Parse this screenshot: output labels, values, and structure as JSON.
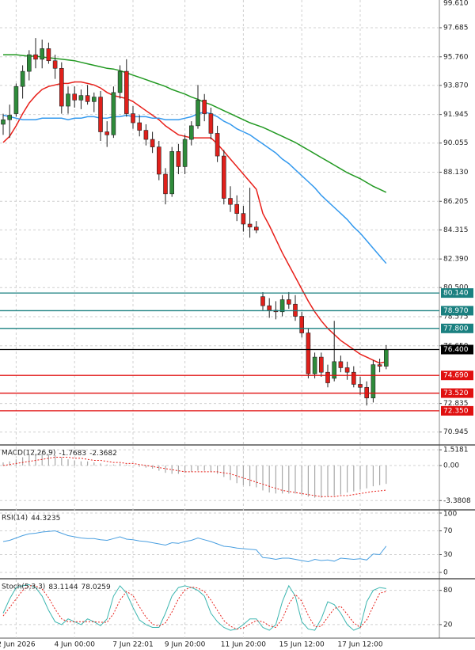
{
  "chart_data": [
    {
      "type": "candlestick",
      "categories": [
        null,
        null,
        "2 Jun 2026",
        null,
        null,
        null,
        null,
        null,
        null,
        null,
        null,
        "4 Jun 00:00",
        null,
        null,
        null,
        null,
        null,
        null,
        null,
        null,
        "7 Jun 22:01",
        null,
        null,
        null,
        null,
        null,
        null,
        null,
        "9 Jun 20:00",
        null,
        null,
        null,
        null,
        null,
        null,
        null,
        null,
        "11 Jun 20:00",
        null,
        null,
        null,
        null,
        null,
        null,
        null,
        null,
        "15 Jun 12:00",
        null,
        null,
        null,
        null,
        null,
        null,
        null,
        null,
        "17 Jun 12:00",
        null,
        null,
        null,
        null
      ],
      "open": [
        91.3,
        91.6,
        92.0,
        93.8,
        94.8,
        95.9,
        95.6,
        96.3,
        95.5,
        95.0,
        92.5,
        93.3,
        92.9,
        93.2,
        92.8,
        93.1,
        90.8,
        90.6,
        93.4,
        94.8,
        92.0,
        91.4,
        90.9,
        90.3,
        89.8,
        88.0,
        86.7,
        89.5,
        88.5,
        90.3,
        91.2,
        92.9,
        92.0,
        90.7,
        89.2,
        86.4,
        86.0,
        85.4,
        84.7,
        84.5,
        79.9,
        79.3,
        79.0,
        78.9,
        79.7,
        79.4,
        78.6,
        77.5,
        74.8,
        75.9,
        74.9,
        74.5,
        75.6,
        75.2,
        74.9,
        74.1,
        73.9,
        73.2,
        75.4,
        75.3
      ],
      "high": [
        92.0,
        92.6,
        94.0,
        95.2,
        96.2,
        97.0,
        96.9,
        96.7,
        95.9,
        95.4,
        93.8,
        93.8,
        93.6,
        93.9,
        93.4,
        93.5,
        91.5,
        93.8,
        95.2,
        95.6,
        92.5,
        91.9,
        91.3,
        90.8,
        90.2,
        88.4,
        89.8,
        90.0,
        90.6,
        91.5,
        93.9,
        93.3,
        92.4,
        91.2,
        89.6,
        87.2,
        86.6,
        85.9,
        87.1,
        84.9,
        80.2,
        79.8,
        79.6,
        80.0,
        80.2,
        80.0,
        78.9,
        77.8,
        76.2,
        76.2,
        75.4,
        78.3,
        76.0,
        75.6,
        75.3,
        74.6,
        74.3,
        75.7,
        75.8,
        76.7
      ],
      "low": [
        90.6,
        90.4,
        91.8,
        93.0,
        94.2,
        95.0,
        95.0,
        95.3,
        94.3,
        92.0,
        92.0,
        92.4,
        92.3,
        92.6,
        92.1,
        90.2,
        89.8,
        90.4,
        93.0,
        91.8,
        91.0,
        90.5,
        89.9,
        89.4,
        87.6,
        86.0,
        86.5,
        88.0,
        88.0,
        89.9,
        91.0,
        91.5,
        90.3,
        88.8,
        86.0,
        85.5,
        84.9,
        84.2,
        83.8,
        84.1,
        79.0,
        78.5,
        78.4,
        78.6,
        79.1,
        78.3,
        77.2,
        74.5,
        74.5,
        74.6,
        73.9,
        74.3,
        74.9,
        74.4,
        73.9,
        73.4,
        72.7,
        72.9,
        74.9,
        75.1
      ],
      "close": [
        91.6,
        91.9,
        93.8,
        94.8,
        95.9,
        95.6,
        96.3,
        95.5,
        95.0,
        92.5,
        93.3,
        92.9,
        93.2,
        92.8,
        93.1,
        90.8,
        90.6,
        93.4,
        94.8,
        92.0,
        91.4,
        90.9,
        90.3,
        89.8,
        88.0,
        86.7,
        89.5,
        88.5,
        90.3,
        91.2,
        92.9,
        92.0,
        90.7,
        89.2,
        86.4,
        86.0,
        85.4,
        84.7,
        84.5,
        84.3,
        79.3,
        79.0,
        78.9,
        79.7,
        79.4,
        78.6,
        77.5,
        74.8,
        75.9,
        74.9,
        74.2,
        75.6,
        75.2,
        74.9,
        74.1,
        73.9,
        73.2,
        75.4,
        75.3,
        76.4
      ],
      "up_color": "#2e8b3a",
      "down_color": "#e0201b",
      "lines": [
        {
          "color": "#e8201a",
          "values": [
            90.1,
            90.5,
            91.2,
            92.0,
            92.7,
            93.2,
            93.6,
            93.8,
            93.9,
            94.0,
            94.0,
            94.1,
            94.1,
            94.0,
            93.9,
            93.7,
            93.4,
            93.2,
            93.1,
            93.0,
            92.8,
            92.5,
            92.2,
            91.9,
            91.6,
            91.2,
            90.9,
            90.6,
            90.5,
            90.4,
            90.4,
            90.4,
            90.4,
            90.0,
            89.5,
            89.0,
            88.5,
            88.0,
            87.5,
            87.0,
            85.4,
            84.6,
            83.7,
            82.8,
            82.0,
            81.2,
            80.4,
            79.6,
            78.9,
            78.3,
            77.8,
            77.4,
            77.0,
            76.7,
            76.4,
            76.1,
            75.9,
            75.7,
            75.5,
            75.6
          ]
        },
        {
          "color": "#3399ee",
          "values": [
            91.9,
            91.8,
            91.7,
            91.6,
            91.6,
            91.6,
            91.7,
            91.7,
            91.7,
            91.7,
            91.6,
            91.7,
            91.7,
            91.8,
            91.8,
            91.7,
            91.7,
            91.8,
            91.8,
            91.9,
            91.8,
            91.8,
            91.8,
            91.7,
            91.7,
            91.6,
            91.6,
            91.6,
            91.7,
            91.8,
            92.0,
            92.1,
            92.0,
            91.8,
            91.5,
            91.3,
            91.0,
            90.8,
            90.6,
            90.3,
            90.0,
            89.7,
            89.4,
            89.0,
            88.7,
            88.3,
            87.9,
            87.5,
            87.1,
            86.6,
            86.2,
            85.8,
            85.4,
            85.0,
            84.5,
            84.1,
            83.6,
            83.1,
            82.6,
            82.1
          ]
        },
        {
          "color": "#229922",
          "values": [
            95.9,
            95.9,
            95.9,
            95.85,
            95.8,
            95.8,
            95.75,
            95.7,
            95.65,
            95.6,
            95.55,
            95.5,
            95.4,
            95.3,
            95.2,
            95.1,
            95.0,
            94.95,
            94.85,
            94.7,
            94.55,
            94.4,
            94.25,
            94.1,
            93.95,
            93.8,
            93.6,
            93.45,
            93.3,
            93.1,
            92.95,
            92.75,
            92.6,
            92.4,
            92.2,
            92.0,
            91.8,
            91.6,
            91.4,
            91.25,
            91.1,
            90.9,
            90.7,
            90.5,
            90.3,
            90.1,
            89.85,
            89.6,
            89.35,
            89.1,
            88.85,
            88.6,
            88.35,
            88.1,
            87.9,
            87.7,
            87.45,
            87.2,
            87.0,
            86.8
          ]
        }
      ],
      "levels": [
        {
          "value": 80.14,
          "label": "80.140",
          "color": "#1a8080"
        },
        {
          "value": 78.97,
          "label": "78.970",
          "color": "#1a8080"
        },
        {
          "value": 77.8,
          "label": "77.800",
          "color": "#1a8080"
        },
        {
          "value": 74.69,
          "label": "74.690",
          "color": "#e01010"
        },
        {
          "value": 73.52,
          "label": "73.520",
          "color": "#e01010"
        },
        {
          "value": 72.35,
          "label": "72.350",
          "color": "#e01010"
        }
      ],
      "last": {
        "value": 76.4,
        "label": "76.400",
        "color": "#000000"
      },
      "ylim": [
        70.145,
        99.518
      ],
      "yticks": [
        {
          "value": 99.61,
          "label": "99.610"
        },
        97.685,
        {
          "value": 95.76,
          "label": "95.760"
        },
        {
          "value": 93.87,
          "label": "93.870"
        },
        91.945,
        90.055,
        {
          "value": 88.13,
          "label": "88.130"
        },
        86.205,
        84.315,
        {
          "value": 82.39,
          "label": "82.390"
        },
        {
          "value": 80.5,
          "label": "80.500"
        },
        78.575,
        {
          "value": 76.65,
          "label": "76.650"
        },
        72.835,
        70.945
      ],
      "grid": true
    },
    {
      "type": "indicator",
      "title": "MACD(12,26,9)",
      "series": [
        {
          "style": "histogram",
          "color": "#a8a8a8",
          "values": [
            0.3,
            0.4,
            0.6,
            0.8,
            1.0,
            1.1,
            1.2,
            1.1,
            1.0,
            0.8,
            0.6,
            0.5,
            0.4,
            0.4,
            0.3,
            0.2,
            0.1,
            0.1,
            0.2,
            0.1,
            0.0,
            -0.1,
            -0.2,
            -0.3,
            -0.5,
            -0.7,
            -0.8,
            -0.8,
            -0.7,
            -0.6,
            -0.5,
            -0.5,
            -0.6,
            -0.8,
            -1.1,
            -1.4,
            -1.7,
            -1.9,
            -2.0,
            -2.1,
            -2.4,
            -2.6,
            -2.7,
            -2.7,
            -2.7,
            -2.7,
            -2.8,
            -3.0,
            -3.1,
            -3.1,
            -3.0,
            -2.9,
            -2.8,
            -2.6,
            -2.5,
            -2.3,
            -2.2,
            -2.0,
            -1.9,
            -1.7683
          ]
        },
        {
          "style": "dotted",
          "color": "#e8201a",
          "values": [
            0.0,
            0.1,
            0.2,
            0.3,
            0.4,
            0.5,
            0.6,
            0.7,
            0.8,
            0.8,
            0.8,
            0.7,
            0.7,
            0.6,
            0.5,
            0.5,
            0.4,
            0.3,
            0.3,
            0.2,
            0.2,
            0.1,
            0.0,
            -0.1,
            -0.2,
            -0.3,
            -0.4,
            -0.5,
            -0.6,
            -0.6,
            -0.6,
            -0.6,
            -0.6,
            -0.6,
            -0.7,
            -0.8,
            -1.0,
            -1.2,
            -1.4,
            -1.6,
            -1.8,
            -2.0,
            -2.2,
            -2.4,
            -2.5,
            -2.6,
            -2.7,
            -2.8,
            -2.9,
            -3.0,
            -3.0,
            -3.0,
            -2.9,
            -2.9,
            -2.8,
            -2.7,
            -2.6,
            -2.5,
            -2.45,
            -2.3682
          ]
        }
      ],
      "ylim": [
        -4.2,
        1.91
      ],
      "yticks": [
        1.5181,
        {
          "value": 0,
          "label": "0.00"
        },
        -3.3808
      ],
      "grid": true
    },
    {
      "type": "indicator",
      "title": "RSI(14)",
      "series": [
        {
          "style": "solid",
          "color": "#4a9fe0",
          "values": [
            52,
            54,
            58,
            62,
            65,
            66,
            68,
            69,
            70,
            66,
            62,
            60,
            58,
            57,
            57,
            55,
            54,
            57,
            60,
            56,
            55,
            53,
            52,
            50,
            48,
            46,
            50,
            49,
            52,
            54,
            58,
            55,
            52,
            48,
            44,
            43,
            41,
            40,
            39,
            38,
            25,
            24,
            22,
            24,
            24,
            22,
            20,
            18,
            22,
            20,
            21,
            19,
            24,
            23,
            22,
            23,
            21,
            31,
            30,
            44.3235
          ]
        }
      ],
      "ylim": [
        -9.3,
        104
      ],
      "yticks": [
        100,
        70,
        30,
        0
      ],
      "grid": true
    },
    {
      "type": "indicator",
      "title": "Stoch(5,3,3)",
      "series": [
        {
          "style": "solid",
          "color": "#3cb6b0",
          "values": [
            40,
            65,
            85,
            88,
            90,
            85,
            70,
            45,
            25,
            20,
            30,
            25,
            20,
            30,
            25,
            18,
            30,
            70,
            88,
            75,
            50,
            28,
            20,
            15,
            15,
            40,
            70,
            85,
            88,
            85,
            80,
            70,
            40,
            25,
            15,
            10,
            12,
            20,
            30,
            30,
            15,
            10,
            20,
            60,
            88,
            70,
            25,
            12,
            10,
            30,
            60,
            55,
            40,
            20,
            10,
            15,
            60,
            80,
            85,
            83.1144
          ]
        },
        {
          "style": "dotted",
          "color": "#e8201a",
          "values": [
            35,
            50,
            65,
            80,
            88,
            88,
            82,
            67,
            47,
            30,
            25,
            25,
            25,
            25,
            25,
            24,
            24,
            39,
            63,
            78,
            71,
            51,
            33,
            21,
            17,
            23,
            42,
            65,
            81,
            86,
            84,
            78,
            63,
            45,
            27,
            17,
            12,
            14,
            21,
            27,
            25,
            18,
            15,
            30,
            56,
            73,
            61,
            36,
            16,
            17,
            33,
            48,
            52,
            38,
            23,
            15,
            28,
            52,
            75,
            78.0259
          ]
        }
      ],
      "ylim": [
        -2.4,
        99
      ],
      "yticks": [
        80,
        20
      ],
      "grid": true
    }
  ]
}
